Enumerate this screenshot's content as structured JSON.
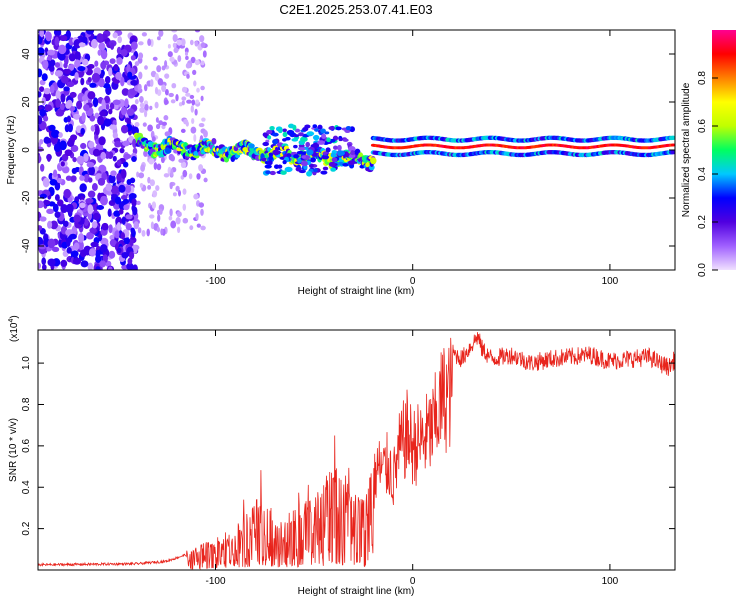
{
  "title": "C2E1.2025.253.07.41.E03",
  "chart_data": [
    {
      "type": "heatmap",
      "xlabel": "Height of straight line (km)",
      "ylabel": "Frequency (Hz)",
      "xlim": [
        -190,
        133
      ],
      "ylim": [
        -50,
        50
      ],
      "xticks": [
        -100,
        0,
        100
      ],
      "yticks": [
        -40,
        -20,
        0,
        20,
        40
      ],
      "xtick_labels": [
        "-100",
        "0",
        "100"
      ],
      "ytick_labels": [
        "-40",
        "-20",
        "0",
        "20",
        "40"
      ],
      "colorbar": {
        "label": "Normalized spectral amplitude",
        "range": [
          0,
          1
        ],
        "ticks": [
          0.0,
          0.2,
          0.4,
          0.6,
          0.8
        ],
        "tick_labels": [
          "0.0",
          "0.2",
          "0.4",
          "0.6",
          "0.8"
        ],
        "colors": [
          "#f0e0ff",
          "#a060ff",
          "#5000e0",
          "#0000ff",
          "#00c8ff",
          "#00ff60",
          "#c0ff00",
          "#ffff00",
          "#ff8000",
          "#ff0000",
          "#ff0090"
        ]
      },
      "segments": [
        {
          "name": "noise-region",
          "x_range": [
            -190,
            -140
          ],
          "amplitude": 0.2
        },
        {
          "name": "faint-noise-region",
          "x_range": [
            -140,
            -105
          ],
          "amplitude": 0.05
        },
        {
          "name": "signal-trace-onset",
          "x_range": [
            -140,
            -20
          ],
          "center_freq": [
            2,
            -4
          ],
          "amplitude": 0.45
        },
        {
          "name": "signal-trace-scatter",
          "x_range": [
            -75,
            -30
          ],
          "center_freq": [
            10,
            -10
          ],
          "amplitude": 0.2
        },
        {
          "name": "signal-trace-strong",
          "x_range": [
            -20,
            133
          ],
          "center_freq": 1.5,
          "amplitude": 0.95
        }
      ]
    },
    {
      "type": "line",
      "xlabel": "Height of straight line (km)",
      "ylabel": "SNR (10 * v/v)",
      "y_multiplier": "(x10^4)",
      "xlim": [
        -190,
        133
      ],
      "ylim": [
        0,
        11600
      ],
      "xticks": [
        -100,
        0,
        100
      ],
      "yticks": [
        2000,
        4000,
        6000,
        8000,
        10000
      ],
      "xtick_labels": [
        "-100",
        "0",
        "100"
      ],
      "ytick_labels": [
        "0.2",
        "0.4",
        "0.6",
        "0.8",
        "1.0"
      ],
      "color": "#e8241c",
      "series": [
        {
          "name": "SNR",
          "x": [
            -190,
            -160,
            -140,
            -125,
            -110,
            -105,
            -100,
            -95,
            -90,
            -85,
            -80,
            -75,
            -72,
            -70,
            -65,
            -60,
            -55,
            -50,
            -45,
            -42,
            -40,
            -37,
            -35,
            -30,
            -25,
            -20,
            -18,
            -15,
            -12,
            -10,
            -7,
            -5,
            -3,
            0,
            5,
            10,
            15,
            20,
            25,
            30,
            33,
            35,
            40,
            50,
            60,
            70,
            80,
            90,
            100,
            110,
            120,
            125,
            130,
            133
          ],
          "y": [
            250,
            280,
            300,
            420,
            900,
            1300,
            1200,
            1500,
            1700,
            2400,
            3200,
            3400,
            2900,
            2000,
            2200,
            2800,
            3000,
            3200,
            3800,
            4800,
            5200,
            5000,
            4500,
            3600,
            3100,
            4800,
            6000,
            5800,
            6200,
            5200,
            6900,
            7400,
            8000,
            7200,
            7600,
            8200,
            10000,
            10500,
            10200,
            10900,
            11300,
            10700,
            10200,
            10400,
            10000,
            10200,
            10300,
            10400,
            10100,
            10200,
            10300,
            10000,
            9800,
            10200
          ]
        }
      ]
    }
  ]
}
